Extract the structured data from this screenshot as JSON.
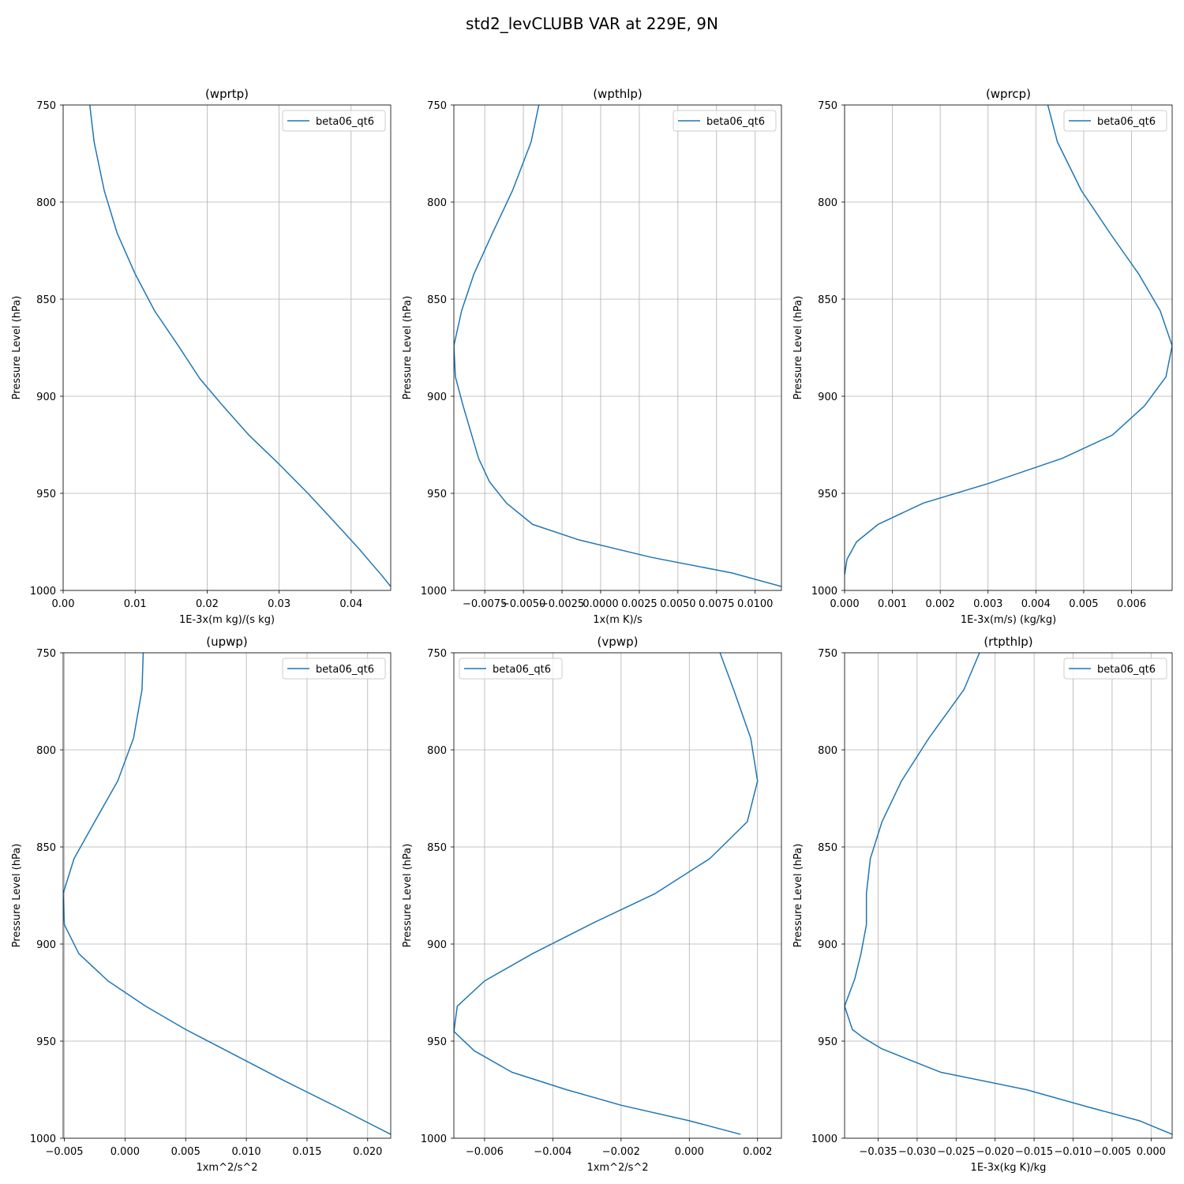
{
  "figure": {
    "title": "std2_levCLUBB VAR at 229E, 9N"
  },
  "chart_data": [
    {
      "type": "line",
      "title": "(wprtp)",
      "xlabel": "1E-3x(m kg)/(s kg)",
      "ylabel": "Pressure Level (hPa)",
      "xlim": [
        0,
        0.0455
      ],
      "ylim": [
        1000,
        750
      ],
      "xticks": [
        "0.00",
        "0.01",
        "0.02",
        "0.03",
        "0.04"
      ],
      "xtick_values": [
        0,
        0.01,
        0.02,
        0.03,
        0.04
      ],
      "yticks": [
        "750",
        "800",
        "850",
        "900",
        "950",
        "1000"
      ],
      "ytick_values": [
        750,
        800,
        850,
        900,
        950,
        1000
      ],
      "grid": true,
      "legend": "upper-right",
      "series": [
        {
          "name": "beta06_qt6",
          "x": [
            0.0037,
            0.0043,
            0.0057,
            0.0075,
            0.01,
            0.0127,
            0.016,
            0.019,
            0.0222,
            0.0258,
            0.03,
            0.034,
            0.038,
            0.0412,
            0.0428,
            0.0442,
            0.0455
          ],
          "y": [
            750,
            769,
            794,
            816,
            837,
            856,
            874,
            891,
            905,
            920,
            935,
            950,
            966,
            979,
            986,
            992,
            998
          ]
        }
      ]
    },
    {
      "type": "line",
      "title": "(wpthlp)",
      "xlabel": "1x(m K)/s",
      "ylabel": "Pressure Level (hPa)",
      "xlim": [
        -0.0095,
        0.0117
      ],
      "ylim": [
        1000,
        750
      ],
      "xticks": [
        "−0.0075",
        "−0.0050",
        "−0.0025",
        "0.0000",
        "0.0025",
        "0.0050",
        "0.0075",
        "0.0100"
      ],
      "xtick_values": [
        -0.0075,
        -0.005,
        -0.0025,
        0,
        0.0025,
        0.005,
        0.0075,
        0.01
      ],
      "yticks": [
        "750",
        "800",
        "850",
        "900",
        "950",
        "1000"
      ],
      "ytick_values": [
        750,
        800,
        850,
        900,
        950,
        1000
      ],
      "grid": true,
      "legend": "upper-right",
      "series": [
        {
          "name": "beta06_qt6",
          "x": [
            -0.004,
            -0.0045,
            -0.0057,
            -0.007,
            -0.0082,
            -0.009,
            -0.0095,
            -0.0094,
            -0.0089,
            -0.0079,
            -0.0072,
            -0.0061,
            -0.0044,
            -0.0014,
            0.0033,
            0.0085,
            0.0117
          ],
          "y": [
            750,
            769,
            794,
            816,
            837,
            856,
            874,
            890,
            905,
            932,
            944,
            955,
            966,
            974,
            983,
            991,
            998
          ]
        }
      ]
    },
    {
      "type": "line",
      "title": "(wprcp)",
      "xlabel": "1E-3x(m/s) (kg/kg)",
      "ylabel": "Pressure Level (hPa)",
      "xlim": [
        0,
        0.00685
      ],
      "ylim": [
        1000,
        750
      ],
      "xticks": [
        "0.000",
        "0.001",
        "0.002",
        "0.003",
        "0.004",
        "0.005",
        "0.006"
      ],
      "xtick_values": [
        0,
        0.001,
        0.002,
        0.003,
        0.004,
        0.005,
        0.006
      ],
      "yticks": [
        "750",
        "800",
        "850",
        "900",
        "950",
        "1000"
      ],
      "ytick_values": [
        750,
        800,
        850,
        900,
        950,
        1000
      ],
      "grid": true,
      "legend": "upper-right",
      "series": [
        {
          "name": "beta06_qt6",
          "x": [
            0.00425,
            0.00445,
            0.00495,
            0.00555,
            0.00615,
            0.0066,
            0.00685,
            0.00672,
            0.00627,
            0.0056,
            0.00455,
            0.003,
            0.00165,
            0.0007,
            0.00025,
            5e-05,
            0.0
          ],
          "y": [
            750,
            769,
            794,
            816,
            837,
            856,
            874,
            890,
            905,
            920,
            932,
            945,
            955,
            966,
            975,
            984,
            992
          ]
        }
      ]
    },
    {
      "type": "line",
      "title": "(upwp)",
      "xlabel": "1xm^2/s^2",
      "ylabel": "Pressure Level (hPa)",
      "xlim": [
        -0.0051,
        0.0219
      ],
      "ylim": [
        1000,
        750
      ],
      "xticks": [
        "−0.005",
        "0.000",
        "0.005",
        "0.010",
        "0.015",
        "0.020"
      ],
      "xtick_values": [
        -0.005,
        0,
        0.005,
        0.01,
        0.015,
        0.02
      ],
      "yticks": [
        "750",
        "800",
        "850",
        "900",
        "950",
        "1000"
      ],
      "ytick_values": [
        750,
        800,
        850,
        900,
        950,
        1000
      ],
      "grid": true,
      "legend": "upper-right",
      "series": [
        {
          "name": "beta06_qt6",
          "x": [
            0.0015,
            0.0014,
            0.0007,
            -0.0006,
            -0.0025,
            -0.0042,
            -0.0051,
            -0.005,
            -0.0038,
            -0.0014,
            0.0017,
            0.005,
            0.009,
            0.013,
            0.0175,
            0.0219
          ],
          "y": [
            750,
            769,
            794,
            816,
            837,
            856,
            874,
            890,
            905,
            919,
            932,
            944,
            957,
            970,
            984,
            998
          ]
        }
      ]
    },
    {
      "type": "line",
      "title": "(vpwp)",
      "xlabel": "1xm^2/s^2",
      "ylabel": "Pressure Level (hPa)",
      "xlim": [
        -0.0069,
        0.0027
      ],
      "ylim": [
        1000,
        750
      ],
      "xticks": [
        "−0.006",
        "−0.004",
        "−0.002",
        "0.000",
        "0.002"
      ],
      "xtick_values": [
        -0.006,
        -0.004,
        -0.002,
        0,
        0.002
      ],
      "yticks": [
        "750",
        "800",
        "850",
        "900",
        "950",
        "1000"
      ],
      "ytick_values": [
        750,
        800,
        850,
        900,
        950,
        1000
      ],
      "grid": true,
      "legend": "upper-left",
      "series": [
        {
          "name": "beta06_qt6",
          "x": [
            0.0009,
            0.0013,
            0.0018,
            0.002,
            0.0017,
            0.0006,
            -0.001,
            -0.0028,
            -0.0046,
            -0.006,
            -0.0068,
            -0.0069,
            -0.0063,
            -0.0052,
            -0.0036,
            -0.002,
            0.0,
            0.0015
          ],
          "y": [
            750,
            769,
            794,
            816,
            837,
            856,
            874,
            889,
            905,
            919,
            932,
            945,
            955,
            966,
            975,
            983,
            991,
            998
          ]
        }
      ]
    },
    {
      "type": "line",
      "title": "(rtpthlp)",
      "xlabel": "1E-3x(kg K)/kg",
      "ylabel": "Pressure Level (hPa)",
      "xlim": [
        -0.0393,
        0.0027
      ],
      "ylim": [
        1000,
        750
      ],
      "xticks": [
        "−0.035",
        "−0.030",
        "−0.025",
        "−0.020",
        "−0.015",
        "−0.010",
        "−0.005",
        "0.000"
      ],
      "xtick_values": [
        -0.035,
        -0.03,
        -0.025,
        -0.02,
        -0.015,
        -0.01,
        -0.005,
        0
      ],
      "yticks": [
        "750",
        "800",
        "850",
        "900",
        "950",
        "1000"
      ],
      "ytick_values": [
        750,
        800,
        850,
        900,
        950,
        1000
      ],
      "grid": true,
      "legend": "upper-right",
      "series": [
        {
          "name": "beta06_qt6",
          "x": [
            -0.022,
            -0.024,
            -0.0285,
            -0.032,
            -0.0345,
            -0.036,
            -0.0365,
            -0.0365,
            -0.0372,
            -0.038,
            -0.0393,
            -0.0383,
            -0.037,
            -0.0345,
            -0.027,
            -0.016,
            -0.008,
            -0.0015,
            0.0027
          ],
          "y": [
            750,
            769,
            794,
            816,
            837,
            856,
            874,
            890,
            905,
            918,
            932,
            944,
            948,
            954,
            966,
            975,
            984,
            991,
            998
          ]
        }
      ]
    }
  ]
}
